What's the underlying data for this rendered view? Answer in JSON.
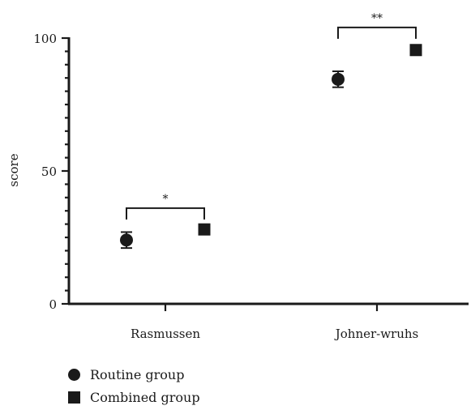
{
  "chart_data": {
    "type": "scatter",
    "ylabel": "score",
    "xlabel": "",
    "ylim": [
      0,
      100
    ],
    "yticks_major": [
      0,
      50,
      100
    ],
    "categories": [
      "Rasmussen",
      "Johner-wruhs"
    ],
    "series": [
      {
        "name": "Routine group",
        "marker": "circle",
        "values": [
          24,
          84.5
        ],
        "errors": [
          3,
          3
        ]
      },
      {
        "name": "Combined group",
        "marker": "square",
        "values": [
          28,
          95.5
        ],
        "errors": [
          0,
          0
        ]
      }
    ],
    "annotations": [
      {
        "category": "Rasmussen",
        "text": "*",
        "y": 36
      },
      {
        "category": "Johner-wruhs",
        "text": "**",
        "y": 104
      }
    ],
    "grid": false,
    "legend_position": "bottom-left"
  },
  "colors": {
    "marker": "#1a1a1a",
    "axis": "#1a1a1a"
  }
}
